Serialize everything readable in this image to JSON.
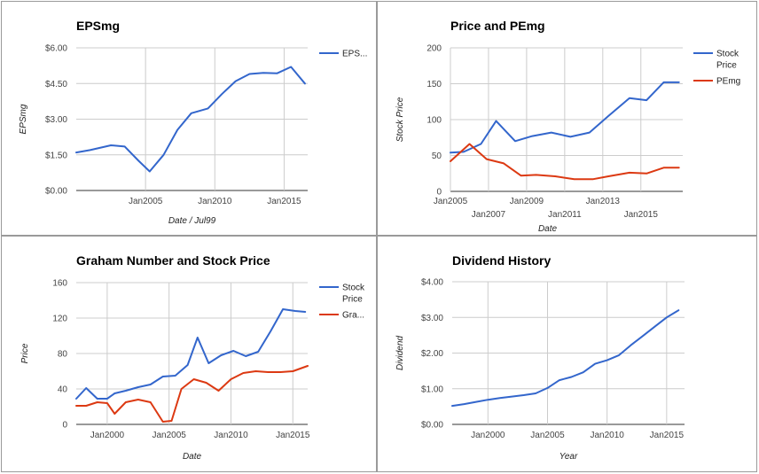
{
  "colors": {
    "blue": "#3366cc",
    "red": "#dc3912",
    "grid": "#cccccc",
    "baseline": "#333333"
  },
  "chart_data": [
    {
      "type": "line",
      "title": "EPSmg",
      "xlabel": "Date / Jul99",
      "ylabel": "EPSmg",
      "ylim": [
        0,
        6
      ],
      "yticks": [
        0,
        1.5,
        3,
        4.5,
        6
      ],
      "ytick_labels": [
        "$0.00",
        "$1.50",
        "$3.00",
        "$4.50",
        "$6.00"
      ],
      "xlim": [
        2000.0,
        2016.7
      ],
      "xticks": [
        2005,
        2010,
        2015
      ],
      "xtick_labels": [
        "Jan2005",
        "Jan2010",
        "Jan2015"
      ],
      "grid": true,
      "legend": "right",
      "series": [
        {
          "name": "EPS...",
          "color": "#3366cc",
          "x": [
            2000.0,
            2001.0,
            2002.5,
            2003.5,
            2004.5,
            2005.3,
            2006.3,
            2007.3,
            2008.3,
            2009.5,
            2010.5,
            2011.5,
            2012.5,
            2013.5,
            2014.5,
            2015.5,
            2016.5
          ],
          "y": [
            1.6,
            1.7,
            1.9,
            1.85,
            1.25,
            0.8,
            1.5,
            2.55,
            3.25,
            3.45,
            4.05,
            4.6,
            4.9,
            4.95,
            4.93,
            5.2,
            4.5
          ]
        }
      ]
    },
    {
      "type": "line",
      "title": "Price and PEmg",
      "xlabel": "Date",
      "ylabel": "Stock Price",
      "ylim": [
        0,
        200
      ],
      "yticks": [
        0,
        50,
        100,
        150,
        200
      ],
      "ytick_labels": [
        "0",
        "50",
        "100",
        "150",
        "200"
      ],
      "xlim": [
        2005.0,
        2017.2
      ],
      "xticks": [
        2005,
        2007,
        2009,
        2011,
        2013,
        2015
      ],
      "xtick_labels": [
        "Jan2005",
        "Jan2007",
        "Jan2009",
        "Jan2011",
        "Jan2013",
        "Jan2015"
      ],
      "xtick_staggered": true,
      "grid": true,
      "legend": "right",
      "series": [
        {
          "name": "Stock Price",
          "color": "#3366cc",
          "x": [
            2005.0,
            2005.7,
            2006.6,
            2007.4,
            2008.4,
            2009.3,
            2010.3,
            2011.3,
            2012.3,
            2013.3,
            2014.4,
            2015.3,
            2016.2,
            2017.0
          ],
          "y": [
            54,
            55,
            66,
            98,
            70,
            77,
            82,
            76,
            82,
            105,
            130,
            127,
            152,
            152
          ]
        },
        {
          "name": "PEmg",
          "color": "#dc3912",
          "x": [
            2005.0,
            2006.0,
            2006.9,
            2007.8,
            2008.7,
            2009.5,
            2010.5,
            2011.5,
            2012.5,
            2013.3,
            2014.4,
            2015.3,
            2016.2,
            2017.0
          ],
          "y": [
            42,
            66,
            45,
            39,
            22,
            23,
            21,
            17,
            17,
            21,
            26,
            25,
            33,
            33
          ]
        }
      ]
    },
    {
      "type": "line",
      "title": "Graham Number and Stock Price",
      "xlabel": "Date",
      "ylabel": "Price",
      "ylim": [
        0,
        160
      ],
      "yticks": [
        0,
        40,
        80,
        120,
        160
      ],
      "ytick_labels": [
        "0",
        "40",
        "80",
        "120",
        "160"
      ],
      "xlim": [
        1997.5,
        2016.2
      ],
      "xticks": [
        2000,
        2005,
        2010,
        2015
      ],
      "xtick_labels": [
        "Jan2000",
        "Jan2005",
        "Jan2010",
        "Jan2015"
      ],
      "grid": true,
      "legend": "right",
      "series": [
        {
          "name": "Stock Price",
          "color": "#3366cc",
          "x": [
            1997.5,
            1998.3,
            1999.2,
            2000.0,
            2000.6,
            2001.5,
            2002.5,
            2003.5,
            2004.5,
            2005.5,
            2006.5,
            2007.3,
            2008.2,
            2009.2,
            2010.2,
            2011.2,
            2012.2,
            2013.2,
            2014.2,
            2015.2,
            2016.0
          ],
          "y": [
            29,
            41,
            29,
            29,
            35,
            38,
            42,
            45,
            54,
            55,
            67,
            98,
            69,
            78,
            83,
            77,
            82,
            105,
            130,
            128,
            127
          ]
        },
        {
          "name": "Gra...",
          "color": "#dc3912",
          "x": [
            1997.5,
            1998.3,
            1999.2,
            2000.0,
            2000.6,
            2001.5,
            2002.5,
            2003.5,
            2004.5,
            2005.2,
            2006.0,
            2007.0,
            2008.0,
            2009.0,
            2010.0,
            2011.0,
            2012.0,
            2013.0,
            2014.0,
            2015.0,
            2016.2
          ],
          "y": [
            21,
            21,
            25,
            24,
            12,
            25,
            28,
            25,
            3,
            4,
            40,
            51,
            47,
            38,
            51,
            58,
            60,
            59,
            59,
            60,
            66
          ]
        }
      ]
    },
    {
      "type": "line",
      "title": "Dividend History",
      "xlabel": "Year",
      "ylabel": "Dividend",
      "ylim": [
        0,
        4
      ],
      "yticks": [
        0,
        1,
        2,
        3,
        4
      ],
      "ytick_labels": [
        "$0.00",
        "$1.00",
        "$2.00",
        "$3.00",
        "$4.00"
      ],
      "xlim": [
        1997.0,
        2016.5
      ],
      "xticks": [
        2000,
        2005,
        2010,
        2015
      ],
      "xtick_labels": [
        "Jan2000",
        "Jan2005",
        "Jan2010",
        "Jan2015"
      ],
      "grid": true,
      "legend": "none",
      "series": [
        {
          "color": "#3366cc",
          "x": [
            1997.0,
            1998.0,
            1999.0,
            2000.0,
            2001.0,
            2002.0,
            2003.0,
            2004.0,
            2005.0,
            2006.0,
            2007.0,
            2008.0,
            2009.0,
            2010.0,
            2011.0,
            2012.0,
            2013.0,
            2014.0,
            2015.0,
            2016.0
          ],
          "y": [
            0.52,
            0.57,
            0.63,
            0.69,
            0.74,
            0.78,
            0.82,
            0.87,
            1.02,
            1.24,
            1.33,
            1.46,
            1.7,
            1.8,
            1.94,
            2.22,
            2.48,
            2.74,
            3.0,
            3.2
          ]
        }
      ]
    }
  ]
}
